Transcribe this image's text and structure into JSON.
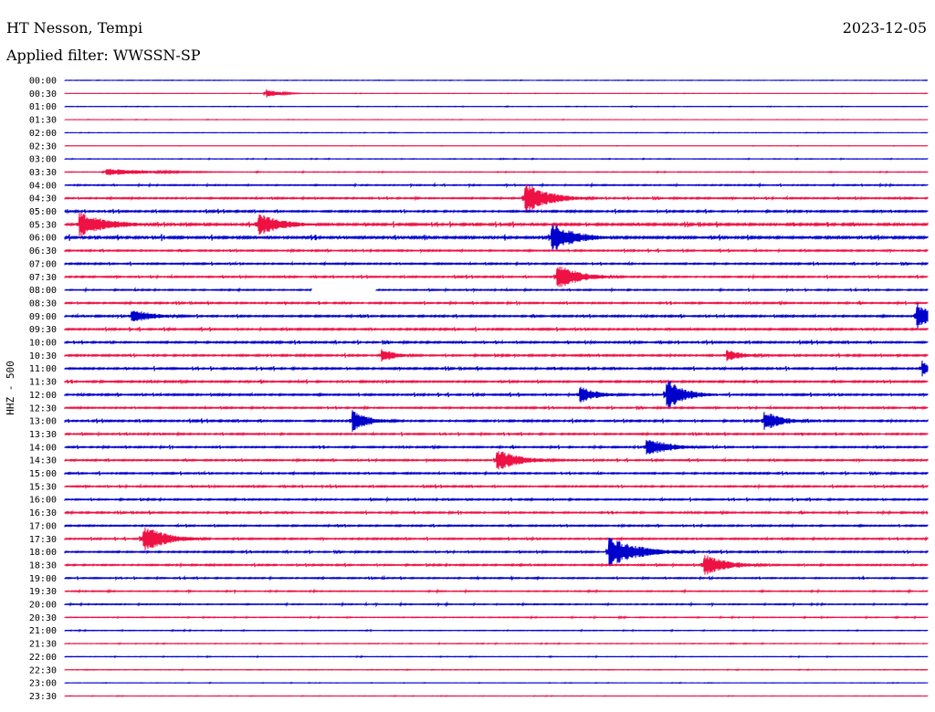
{
  "header": {
    "station": "HT Nesson, Tempi",
    "date": "2023-12-05",
    "filter_label": "Applied filter: WWSSN-SP"
  },
  "chart_data": {
    "type": "line",
    "title": "HT Nesson, Tempi",
    "ylabel": "HHZ - 500",
    "row_labels": [
      "00:00",
      "00:30",
      "01:00",
      "01:30",
      "02:00",
      "02:30",
      "03:00",
      "03:30",
      "04:00",
      "04:30",
      "05:00",
      "05:30",
      "06:00",
      "06:30",
      "07:00",
      "07:30",
      "08:00",
      "08:30",
      "09:00",
      "09:30",
      "10:00",
      "10:30",
      "11:00",
      "11:30",
      "12:00",
      "12:30",
      "13:00",
      "13:30",
      "14:00",
      "14:30",
      "15:00",
      "15:30",
      "16:00",
      "16:30",
      "17:00",
      "17:30",
      "18:00",
      "18:30",
      "19:00",
      "19:30",
      "20:00",
      "20:30",
      "21:00",
      "21:30",
      "22:00",
      "22:30",
      "23:00",
      "23:30"
    ],
    "series_colors": [
      "#0000cc",
      "#ee1144"
    ],
    "x_unit": "minutes within 30-min row",
    "xlim": [
      0,
      30
    ],
    "noise_level": [
      0.05,
      0.05,
      0.07,
      0.05,
      0.05,
      0.05,
      0.09,
      0.12,
      0.22,
      0.3,
      0.35,
      0.45,
      0.5,
      0.3,
      0.3,
      0.3,
      0.25,
      0.3,
      0.35,
      0.35,
      0.35,
      0.35,
      0.35,
      0.35,
      0.35,
      0.3,
      0.35,
      0.3,
      0.3,
      0.3,
      0.3,
      0.3,
      0.3,
      0.3,
      0.3,
      0.3,
      0.3,
      0.3,
      0.25,
      0.2,
      0.2,
      0.15,
      0.12,
      0.1,
      0.1,
      0.08,
      0.07,
      0.06
    ],
    "events": [
      {
        "row": 1,
        "minute": 7.0,
        "amp": 5,
        "dur": 0.4
      },
      {
        "row": 7,
        "minute": 1.4,
        "amp": 4,
        "dur": 1.5
      },
      {
        "row": 9,
        "minute": 16.0,
        "amp": 18,
        "dur": 0.8
      },
      {
        "row": 11,
        "minute": 0.5,
        "amp": 14,
        "dur": 1.0
      },
      {
        "row": 11,
        "minute": 6.7,
        "amp": 14,
        "dur": 0.8
      },
      {
        "row": 12,
        "minute": 16.9,
        "amp": 18,
        "dur": 0.8
      },
      {
        "row": 15,
        "minute": 17.1,
        "amp": 15,
        "dur": 0.8
      },
      {
        "row": 18,
        "minute": 2.3,
        "amp": 8,
        "dur": 0.8
      },
      {
        "row": 18,
        "minute": 29.6,
        "amp": 16,
        "dur": 0.6
      },
      {
        "row": 21,
        "minute": 11.0,
        "amp": 8,
        "dur": 0.5
      },
      {
        "row": 21,
        "minute": 23.0,
        "amp": 7,
        "dur": 0.6
      },
      {
        "row": 22,
        "minute": 29.8,
        "amp": 9,
        "dur": 0.4
      },
      {
        "row": 24,
        "minute": 17.9,
        "amp": 10,
        "dur": 0.6
      },
      {
        "row": 24,
        "minute": 20.9,
        "amp": 20,
        "dur": 0.6
      },
      {
        "row": 26,
        "minute": 10.0,
        "amp": 12,
        "dur": 0.6
      },
      {
        "row": 26,
        "minute": 24.3,
        "amp": 12,
        "dur": 0.6
      },
      {
        "row": 28,
        "minute": 20.2,
        "amp": 11,
        "dur": 0.8
      },
      {
        "row": 29,
        "minute": 15.0,
        "amp": 13,
        "dur": 0.8
      },
      {
        "row": 35,
        "minute": 2.7,
        "amp": 16,
        "dur": 0.8
      },
      {
        "row": 36,
        "minute": 18.9,
        "amp": 18,
        "dur": 1.0
      },
      {
        "row": 37,
        "minute": 22.2,
        "amp": 13,
        "dur": 0.8
      }
    ],
    "gaps": [
      {
        "row": 16,
        "start": 8.6,
        "end": 10.8
      }
    ]
  }
}
